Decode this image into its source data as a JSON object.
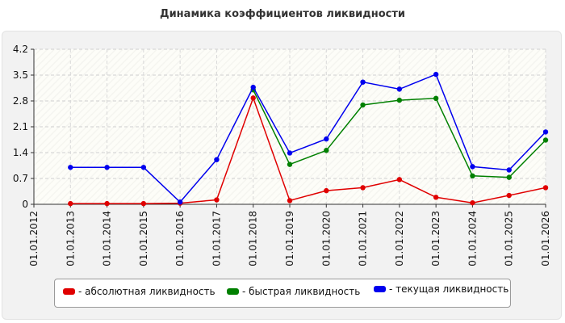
{
  "chart_data": {
    "type": "line",
    "title": "Динамика коэффициентов ликвидности",
    "xlabel": "",
    "ylabel": "",
    "categories": [
      "01.01.2012",
      "01.01.2013",
      "01.01.2014",
      "01.01.2015",
      "01.01.2016",
      "01.01.2017",
      "01.01.2018",
      "01.01.2019",
      "01.01.2020",
      "01.01.2021",
      "01.01.2022",
      "01.01.2023",
      "01.01.2024",
      "01.01.2025",
      "01.01.2026"
    ],
    "y_ticks": [
      "0",
      "0.7",
      "1.4",
      "2.1",
      "2.8",
      "3.5",
      "4.2"
    ],
    "ylim": [
      0,
      4.2
    ],
    "grid": true,
    "legend_position": "bottom",
    "series": [
      {
        "name": "- абсолютная ликвидность",
        "color": "#e00000",
        "values": [
          null,
          0.02,
          0.02,
          0.02,
          0.03,
          0.12,
          2.88,
          0.1,
          0.37,
          0.45,
          0.67,
          0.19,
          0.04,
          0.24,
          0.45
        ]
      },
      {
        "name": "- быстрая ликвидность",
        "color": "#008000",
        "values": [
          null,
          null,
          null,
          null,
          null,
          null,
          3.1,
          1.08,
          1.46,
          2.69,
          2.82,
          2.87,
          0.77,
          0.73,
          1.74
        ]
      },
      {
        "name": "- текущая ликвидность",
        "color": "#0000ee",
        "values": [
          null,
          1.0,
          1.0,
          1.0,
          0.06,
          1.21,
          3.17,
          1.39,
          1.77,
          3.31,
          3.12,
          3.52,
          1.02,
          0.93,
          1.96
        ]
      }
    ]
  }
}
